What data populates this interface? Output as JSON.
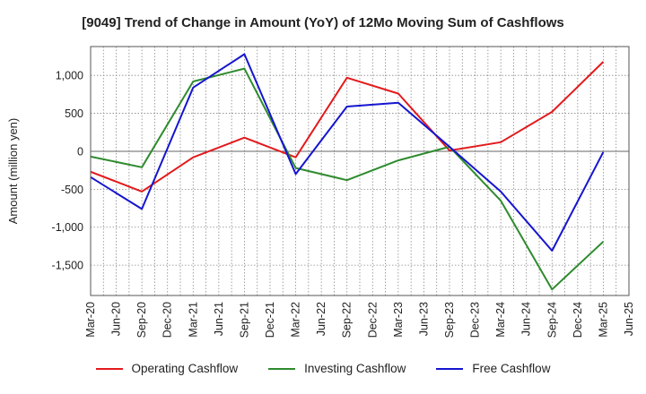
{
  "chart_data": {
    "type": "line",
    "title": "[9049]  Trend of Change in Amount (YoY) of 12Mo Moving Sum of Cashflows",
    "xlabel": "",
    "ylabel": "Amount (million yen)",
    "categories": [
      "Mar-20",
      "Jun-20",
      "Sep-20",
      "Dec-20",
      "Mar-21",
      "Jun-21",
      "Sep-21",
      "Dec-21",
      "Mar-22",
      "Jun-22",
      "Sep-22",
      "Dec-22",
      "Mar-23",
      "Jun-23",
      "Sep-23",
      "Dec-23",
      "Mar-24",
      "Jun-24",
      "Sep-24",
      "Dec-24",
      "Mar-25",
      "Jun-25"
    ],
    "ylim": [
      -1900,
      1380
    ],
    "yticks": [
      1000,
      500,
      0,
      -500,
      -1000,
      -1500
    ],
    "ytick_labels": [
      "1,000",
      "500",
      "0",
      "-500",
      "-1,000",
      "-1,500"
    ],
    "series": [
      {
        "name": "Operating Cashflow",
        "color": "#e31a1c",
        "points": [
          [
            "Mar-20",
            -270
          ],
          [
            "Sep-20",
            -530
          ],
          [
            "Mar-21",
            -80
          ],
          [
            "Sep-21",
            180
          ],
          [
            "Mar-22",
            -80
          ],
          [
            "Sep-22",
            970
          ],
          [
            "Mar-23",
            760
          ],
          [
            "Sep-23",
            10
          ],
          [
            "Mar-24",
            120
          ],
          [
            "Sep-24",
            520
          ],
          [
            "Mar-25",
            1180
          ]
        ]
      },
      {
        "name": "Investing Cashflow",
        "color": "#2e8b2e",
        "points": [
          [
            "Mar-20",
            -70
          ],
          [
            "Sep-20",
            -210
          ],
          [
            "Mar-21",
            920
          ],
          [
            "Sep-21",
            1090
          ],
          [
            "Mar-22",
            -220
          ],
          [
            "Sep-22",
            -380
          ],
          [
            "Mar-23",
            -120
          ],
          [
            "Sep-23",
            60
          ],
          [
            "Mar-24",
            -650
          ],
          [
            "Sep-24",
            -1820
          ],
          [
            "Mar-25",
            -1190
          ]
        ]
      },
      {
        "name": "Free Cashflow",
        "color": "#1515d0",
        "points": [
          [
            "Mar-20",
            -340
          ],
          [
            "Sep-20",
            -760
          ],
          [
            "Mar-21",
            840
          ],
          [
            "Sep-21",
            1280
          ],
          [
            "Mar-22",
            -300
          ],
          [
            "Sep-22",
            590
          ],
          [
            "Mar-23",
            640
          ],
          [
            "Sep-23",
            60
          ],
          [
            "Mar-24",
            -530
          ],
          [
            "Sep-24",
            -1310
          ],
          [
            "Mar-25",
            -10
          ]
        ]
      }
    ],
    "legend_position": "bottom",
    "grid": true
  }
}
